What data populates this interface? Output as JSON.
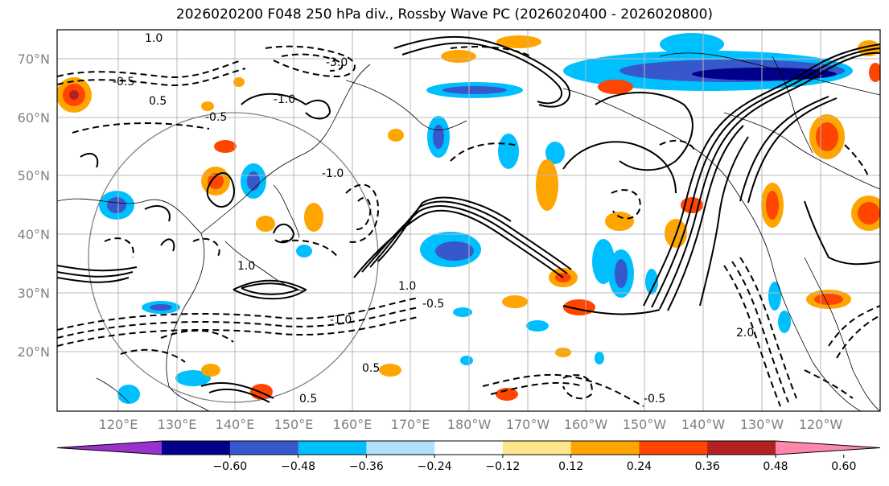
{
  "title": "2026020200 F048 250 hPa div., Rossby Wave PC (2026020400 - 2026020800)",
  "lat_labels": [
    "70°N",
    "60°N",
    "50°N",
    "40°N",
    "30°N",
    "20°N"
  ],
  "lon_labels": [
    "120°E",
    "130°E",
    "140°E",
    "150°E",
    "160°E",
    "170°E",
    "180°W",
    "170°W",
    "160°W",
    "150°W",
    "140°W",
    "130°W",
    "120°W"
  ],
  "colorbar": {
    "colors": [
      "#9932cc",
      "#00008b",
      "#3658cc",
      "#00bfff",
      "#b0e0fa",
      "#ffffff",
      "#ffe68a",
      "#ffa500",
      "#ff4500",
      "#b22222",
      "#ff88aa"
    ],
    "tick_labels": [
      "−0.60",
      "−0.48",
      "−0.36",
      "−0.24",
      "−0.12",
      "0.12",
      "0.24",
      "0.36",
      "0.48",
      "0.60"
    ]
  },
  "contour_labels": [
    "-3.0",
    "-0.5",
    "-1.0",
    "1.0",
    "-0.5",
    "0.5",
    "-1.0",
    "1.0",
    "-0.5",
    "-1.0",
    "0.5",
    "0.5",
    "2.0",
    "1.0",
    "-0.5"
  ]
}
